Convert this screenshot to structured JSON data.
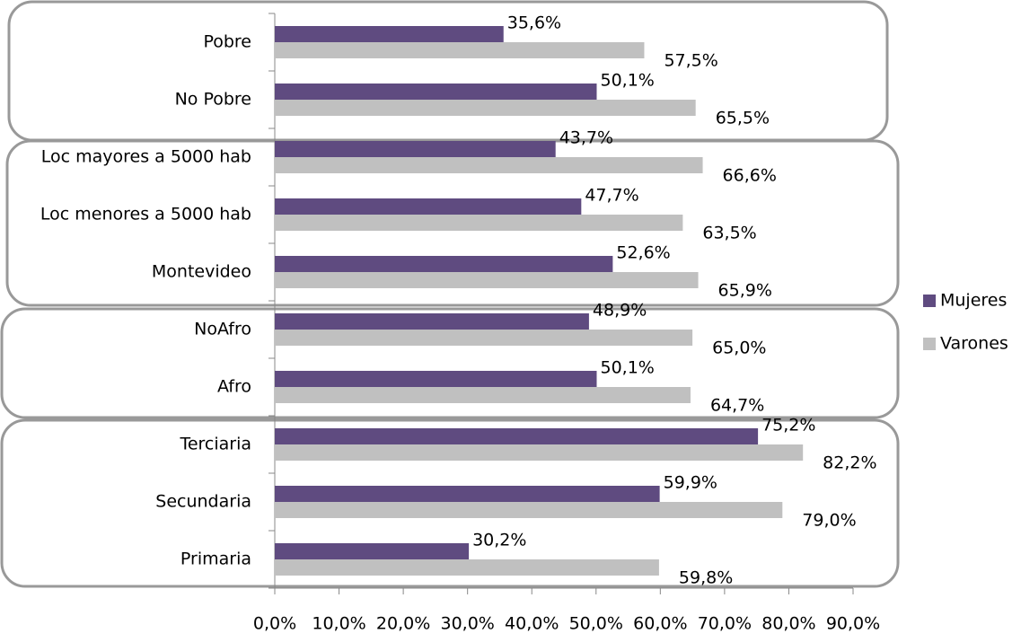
{
  "chart_data": {
    "type": "bar",
    "orientation": "horizontal",
    "categories": [
      "Pobre",
      "No Pobre",
      "Loc mayores a 5000 hab",
      "Loc menores a 5000 hab",
      "Montevideo",
      "NoAfro",
      "Afro",
      "Terciaria",
      "Secundaria",
      "Primaria"
    ],
    "series": [
      {
        "name": "Mujeres",
        "color": "#5f4b80",
        "values": [
          35.6,
          50.1,
          43.7,
          47.7,
          52.6,
          48.9,
          50.1,
          75.2,
          59.9,
          30.2
        ],
        "value_labels": [
          "35,6%",
          "50,1%",
          "43,7%",
          "47,7%",
          "52,6%",
          "48,9%",
          "50,1%",
          "75,2%",
          "59,9%",
          "30,2%"
        ]
      },
      {
        "name": "Varones",
        "color": "#c0c0c0",
        "values": [
          57.5,
          65.5,
          66.6,
          63.5,
          65.9,
          65.0,
          64.7,
          82.2,
          79.0,
          59.8
        ],
        "value_labels": [
          "57,5%",
          "65,5%",
          "66,6%",
          "63,5%",
          "65,9%",
          "65,0%",
          "64,7%",
          "82,2%",
          "79,0%",
          "59,8%"
        ]
      }
    ],
    "xlim": [
      0,
      90
    ],
    "xticks": [
      {
        "value": 0,
        "label": "0,0%"
      },
      {
        "value": 10,
        "label": "10,0%"
      },
      {
        "value": 20,
        "label": "20,0%"
      },
      {
        "value": 30,
        "label": "30,0%"
      },
      {
        "value": 40,
        "label": "40,0%"
      },
      {
        "value": 50,
        "label": "50,0%"
      },
      {
        "value": 60,
        "label": "60,0%"
      },
      {
        "value": 70,
        "label": "70,0%"
      },
      {
        "value": 80,
        "label": "80,0%"
      },
      {
        "value": 90,
        "label": "90,0%"
      }
    ],
    "grid": false,
    "legend": "right"
  }
}
